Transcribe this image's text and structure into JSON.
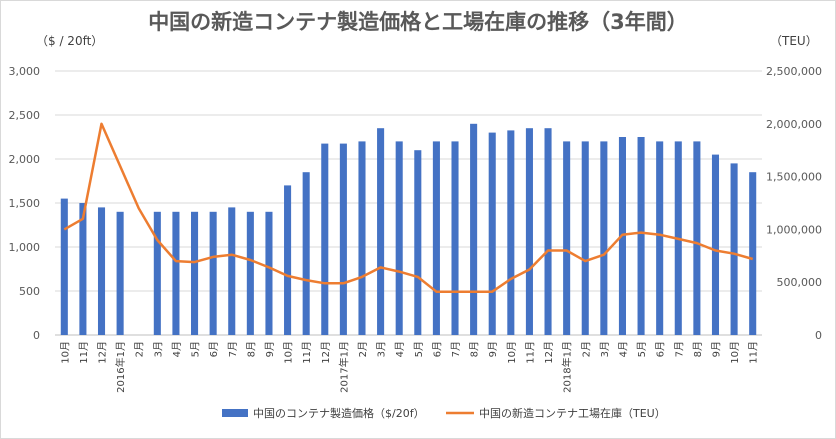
{
  "chart_data": {
    "type": "bar",
    "title": "中国の新造コンテナ製造価格と工場在庫の推移（3年間）",
    "ylabel_left": "（$ / 20ft）",
    "ylabel_right": "（TEU）",
    "ylim_left": [
      0,
      3000
    ],
    "ylim_right": [
      0,
      2500000
    ],
    "left_ticks": [
      "0",
      "500",
      "1,000",
      "1,500",
      "2,000",
      "2,500",
      "3,000"
    ],
    "right_ticks": [
      "0",
      "500,000",
      "1,000,000",
      "1,500,000",
      "2,000,000",
      "2,500,000"
    ],
    "categories": [
      "10月",
      "11月",
      "12月",
      "2016年1月",
      "2月",
      "3月",
      "4月",
      "5月",
      "6月",
      "7月",
      "8月",
      "9月",
      "10月",
      "11月",
      "12月",
      "2017年1月",
      "2月",
      "3月",
      "4月",
      "5月",
      "6月",
      "7月",
      "8月",
      "9月",
      "10月",
      "11月",
      "12月",
      "2018年1月",
      "2月",
      "3月",
      "4月",
      "5月",
      "6月",
      "7月",
      "8月",
      "9月",
      "10月",
      "11月"
    ],
    "series": [
      {
        "name": "中国のコンテナ製造価格（$/20f）",
        "type": "bar",
        "axis": "left",
        "color": "#4472C4",
        "values": [
          1550,
          1500,
          1450,
          1400,
          null,
          1400,
          1400,
          1400,
          1400,
          1450,
          1400,
          1400,
          1700,
          1850,
          2175,
          2175,
          2200,
          2350,
          2200,
          2100,
          2200,
          2200,
          2400,
          2300,
          2325,
          2350,
          2350,
          2200,
          2200,
          2200,
          2250,
          2250,
          2200,
          2200,
          2200,
          2050,
          1950,
          1850
        ]
      },
      {
        "name": "中国の新造コンテナ工場在庫（TEU）",
        "type": "line",
        "axis": "right",
        "color": "#ED7D31",
        "values": [
          1000000,
          1100000,
          2000000,
          1600000,
          1200000,
          900000,
          700000,
          690000,
          740000,
          760000,
          710000,
          640000,
          560000,
          520000,
          490000,
          490000,
          550000,
          640000,
          600000,
          550000,
          410000,
          410000,
          410000,
          410000,
          530000,
          620000,
          800000,
          800000,
          700000,
          760000,
          950000,
          970000,
          950000,
          910000,
          870000,
          800000,
          770000,
          720000
        ]
      }
    ],
    "grid": true,
    "legend": "bottom"
  }
}
